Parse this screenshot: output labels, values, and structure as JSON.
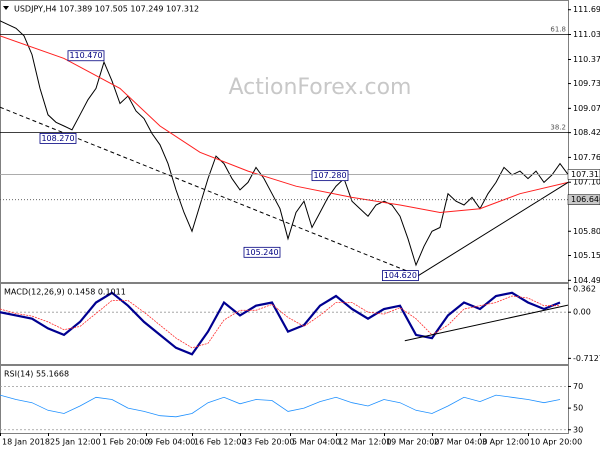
{
  "chart_data": [
    {
      "type": "line",
      "title": "USDJPY,H4 107.389 107.505 107.249 107.312",
      "watermark": "ActionForex.com",
      "xlim": [
        0,
        71
      ],
      "ylim": [
        104.45,
        111.9
      ],
      "yticks": [
        111.695,
        111.035,
        {
          "value": 110.37,
          "label": "110.370"
        },
        {
          "value": 109.73,
          "label": "109.730"
        },
        {
          "value": 109.07,
          "label": "109.070"
        },
        108.425,
        107.765,
        107.105,
        {
          "value": 105.8,
          "label": "105.800"
        },
        105.155,
        104.495
      ],
      "series": [
        {
          "color": "#000000",
          "x": [
            0,
            1,
            2,
            3,
            4,
            5,
            6,
            7,
            8,
            9,
            10,
            11,
            12,
            13,
            14,
            15,
            16,
            17,
            18,
            19,
            20,
            21,
            22,
            23,
            24,
            25,
            26,
            27,
            28,
            29,
            30,
            31,
            32,
            33,
            34,
            35,
            36,
            37,
            38,
            39,
            40,
            41,
            42,
            43,
            44,
            45,
            46,
            47,
            48,
            49,
            50,
            51,
            52,
            53,
            54,
            55,
            56,
            57,
            58,
            59,
            60,
            61,
            62,
            63,
            64,
            65,
            66,
            67,
            68,
            69,
            70,
            71
          ],
          "values": [
            111.4,
            111.3,
            111.2,
            111.0,
            110.5,
            109.6,
            108.9,
            108.7,
            108.6,
            108.5,
            108.9,
            109.3,
            109.6,
            110.3,
            109.8,
            109.2,
            109.4,
            109.0,
            108.8,
            108.4,
            108.1,
            107.6,
            106.9,
            106.3,
            105.8,
            106.5,
            107.2,
            107.8,
            107.6,
            107.2,
            106.9,
            107.1,
            107.5,
            107.2,
            106.8,
            106.4,
            105.6,
            106.3,
            106.6,
            105.9,
            106.3,
            106.7,
            107.0,
            107.2,
            106.6,
            106.4,
            106.2,
            106.5,
            106.6,
            106.5,
            106.2,
            105.6,
            104.9,
            105.4,
            105.8,
            105.9,
            106.8,
            106.6,
            106.5,
            106.7,
            106.4,
            106.8,
            107.1,
            107.5,
            107.3,
            107.4,
            107.2,
            107.4,
            107.1,
            107.3,
            107.6,
            107.312
          ]
        },
        {
          "color": "#ff2020",
          "x": [
            0,
            8,
            15,
            20,
            25,
            31,
            37,
            44,
            50,
            55,
            60,
            65,
            71
          ],
          "values": [
            111.0,
            110.4,
            109.6,
            108.6,
            107.9,
            107.4,
            107.0,
            106.7,
            106.5,
            106.3,
            106.4,
            106.8,
            107.1
          ]
        }
      ],
      "levels": [
        {
          "value": 111.035,
          "label": "61.8"
        },
        {
          "value": 108.425,
          "label": "38.2"
        }
      ],
      "price_labels": [
        {
          "value": 107.312,
          "color": "#ffffff",
          "line": "#a0a0a0"
        },
        {
          "value": 106.64,
          "label": "106.640",
          "color": "#c8c8c8",
          "line": "#505050"
        }
      ],
      "callouts": [
        {
          "label": "110.470",
          "value": 110.47,
          "x": 13
        },
        {
          "label": "108.270",
          "value": 108.27,
          "x": 9.5
        },
        {
          "label": "107.280",
          "value": 107.28,
          "x": 43.5
        },
        {
          "label": "105.240",
          "value": 105.24,
          "x": 35
        },
        {
          "label": "104.620",
          "value": 104.62,
          "x": 52.3
        }
      ],
      "trendlines": [
        {
          "x": [
            0,
            52.3
          ],
          "values": [
            109.1,
            104.62
          ],
          "dashed": true
        },
        {
          "x": [
            52.3,
            71
          ],
          "values": [
            104.62,
            107.1
          ],
          "dashed": false
        }
      ]
    },
    {
      "type": "line",
      "title": "MACD(12,26,9) 0.1458 0.1011",
      "xlim": [
        0,
        71
      ],
      "ylim": [
        -0.8,
        0.42
      ],
      "yticks": [
        0.362,
        {
          "value": 0,
          "label": "0.00"
        },
        -0.7127
      ],
      "levels": [
        {
          "value": 0
        }
      ],
      "series": [
        {
          "color": "#000090",
          "width": 2.2,
          "x": [
            0,
            2,
            4,
            6,
            8,
            10,
            12,
            14,
            16,
            18,
            20,
            22,
            24,
            26,
            28,
            30,
            32,
            34,
            36,
            38,
            40,
            42,
            44,
            46,
            48,
            50,
            52,
            54,
            56,
            58,
            60,
            62,
            64,
            66,
            68,
            70
          ],
          "values": [
            0.0,
            -0.05,
            -0.1,
            -0.25,
            -0.35,
            -0.15,
            0.15,
            0.3,
            0.1,
            -0.15,
            -0.35,
            -0.55,
            -0.65,
            -0.3,
            0.15,
            -0.05,
            0.1,
            0.15,
            -0.3,
            -0.2,
            0.1,
            0.25,
            0.05,
            -0.1,
            0.05,
            0.1,
            -0.35,
            -0.4,
            -0.05,
            0.15,
            0.05,
            0.25,
            0.3,
            0.15,
            0.05,
            0.15
          ]
        },
        {
          "color": "#ff3030",
          "width": 0.8,
          "dashed": true,
          "x": [
            0,
            2,
            4,
            6,
            8,
            10,
            12,
            14,
            16,
            18,
            20,
            22,
            24,
            26,
            28,
            30,
            32,
            34,
            36,
            38,
            40,
            42,
            44,
            46,
            48,
            50,
            52,
            54,
            56,
            58,
            60,
            62,
            64,
            66,
            68,
            70
          ],
          "values": [
            0.05,
            -0.02,
            -0.06,
            -0.15,
            -0.27,
            -0.22,
            -0.02,
            0.18,
            0.18,
            0.0,
            -0.2,
            -0.4,
            -0.55,
            -0.48,
            -0.12,
            0.03,
            0.03,
            0.12,
            -0.08,
            -0.22,
            -0.05,
            0.15,
            0.15,
            0.0,
            -0.03,
            0.07,
            -0.1,
            -0.35,
            -0.2,
            0.05,
            0.1,
            0.15,
            0.25,
            0.22,
            0.1,
            0.1
          ]
        }
      ],
      "trendlines": [
        {
          "x": [
            50.6,
            71
          ],
          "values": [
            -0.44,
            0.11
          ],
          "dashed": false
        }
      ]
    },
    {
      "type": "line",
      "title": "RSI(14) 55.1668",
      "xlim": [
        0,
        71
      ],
      "ylim": [
        27,
        88
      ],
      "yticks": [
        70,
        50,
        30
      ],
      "levels": [
        {
          "value": 70
        },
        {
          "value": 30
        }
      ],
      "series": [
        {
          "color": "#1e90ff",
          "width": 0.8,
          "x": [
            0,
            2,
            4,
            6,
            8,
            10,
            12,
            14,
            16,
            18,
            20,
            22,
            24,
            26,
            28,
            30,
            32,
            34,
            36,
            38,
            40,
            42,
            44,
            46,
            48,
            50,
            52,
            54,
            56,
            58,
            60,
            62,
            64,
            66,
            68,
            70
          ],
          "values": [
            62,
            58,
            55,
            48,
            45,
            52,
            60,
            58,
            50,
            47,
            43,
            42,
            45,
            55,
            60,
            54,
            58,
            57,
            47,
            50,
            56,
            60,
            55,
            52,
            58,
            55,
            48,
            45,
            52,
            60,
            56,
            62,
            60,
            58,
            55,
            58
          ]
        }
      ],
      "xticks": [
        {
          "value": 0,
          "label": "18 Jan 2018"
        },
        {
          "value": 6,
          "label": "25 Jan 12:00"
        },
        {
          "value": 12.5,
          "label": "1 Feb 20:00"
        },
        {
          "value": 18.25,
          "label": "9 Feb 04:00"
        },
        {
          "value": 24,
          "label": "16 Feb 12:00"
        },
        {
          "value": 30,
          "label": "23 Feb 20:00"
        },
        {
          "value": 36.25,
          "label": "5 Mar 04:00"
        },
        {
          "value": 42,
          "label": "12 Mar 12:00"
        },
        {
          "value": 48,
          "label": "19 Mar 20:00"
        },
        {
          "value": 54,
          "label": "27 Mar 04:00"
        },
        {
          "value": 60,
          "label": "3 Apr 12:00"
        },
        {
          "value": 66,
          "label": "10 Apr 20:00"
        }
      ]
    }
  ]
}
